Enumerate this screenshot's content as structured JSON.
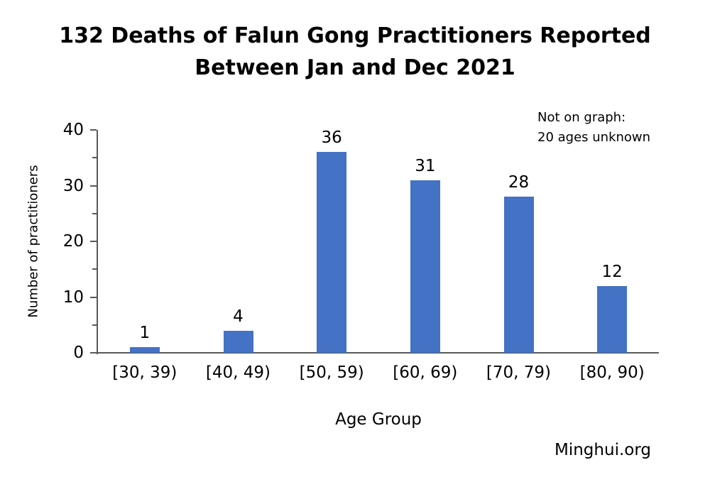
{
  "title": {
    "line1": "132 Deaths of Falun Gong Practitioners Reported",
    "line2": "Between Jan and Dec 2021"
  },
  "source": "Minghui.org",
  "chart_data": {
    "type": "bar",
    "title": "132 Deaths of Falun Gong Practitioners Reported Between Jan and Dec 2021",
    "categories": [
      "[30, 39)",
      "[40, 49)",
      "[50, 59)",
      "[60, 69)",
      "[70, 79)",
      "[80, 90)"
    ],
    "values": [
      1,
      4,
      36,
      31,
      28,
      12
    ],
    "xlabel": "Age Group",
    "ylabel": "Number of practitioners",
    "ylim": [
      0,
      40
    ],
    "major_ticks": [
      0,
      10,
      20,
      30,
      40
    ],
    "minor_ticks": [
      5,
      15,
      25,
      35
    ],
    "annotation": "Not on graph:\n20 ages unknown",
    "bar_color": "#4472C4",
    "axis_color": "#595959",
    "text_color": "#000000",
    "grid": false,
    "legend": "none"
  }
}
